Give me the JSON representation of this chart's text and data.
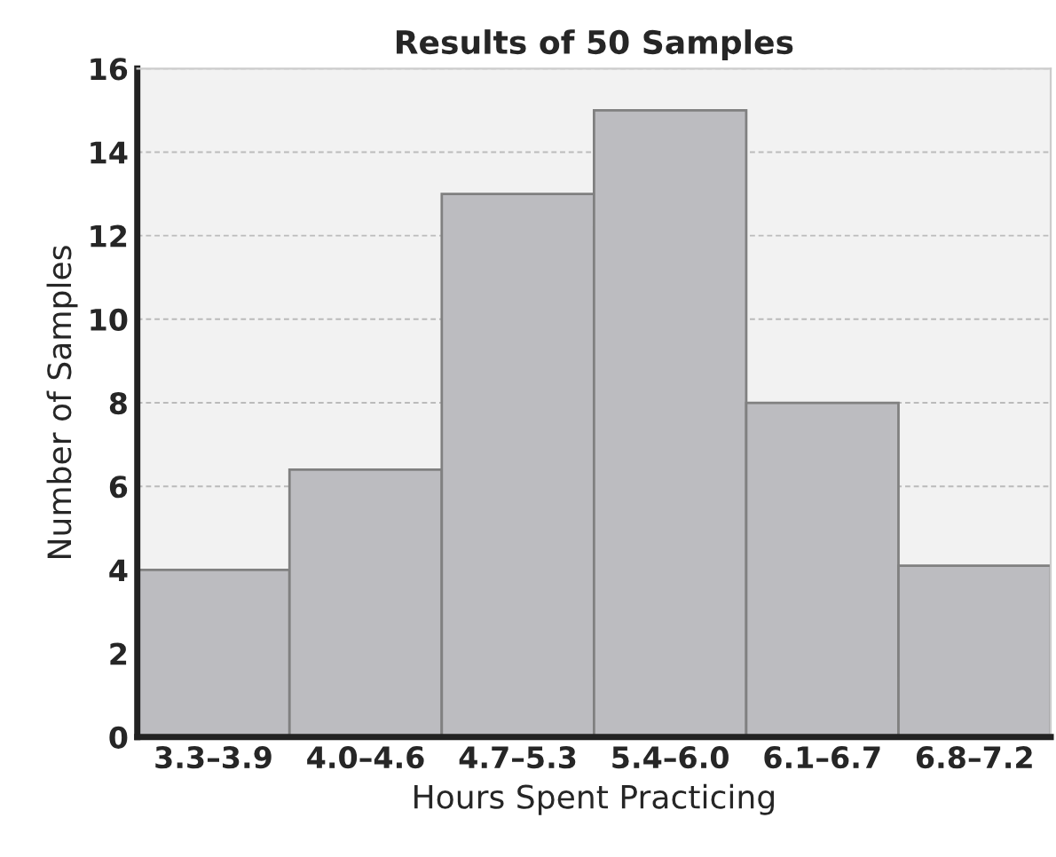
{
  "chart_data": {
    "type": "bar",
    "title": "Results of 50 Samples",
    "xlabel": "Hours Spent Practicing",
    "ylabel": "Number of Samples",
    "categories": [
      "3.3–3.9",
      "4.0–4.6",
      "4.7–5.3",
      "5.4–6.0",
      "6.1–6.7",
      "6.8–7.2"
    ],
    "values": [
      4,
      6.4,
      13,
      15,
      8,
      4.1
    ],
    "color": "#bcbcc0",
    "ylim": [
      0,
      16
    ],
    "yticks": [
      0,
      2,
      4,
      6,
      8,
      10,
      12,
      14,
      16
    ],
    "grid": "y"
  }
}
